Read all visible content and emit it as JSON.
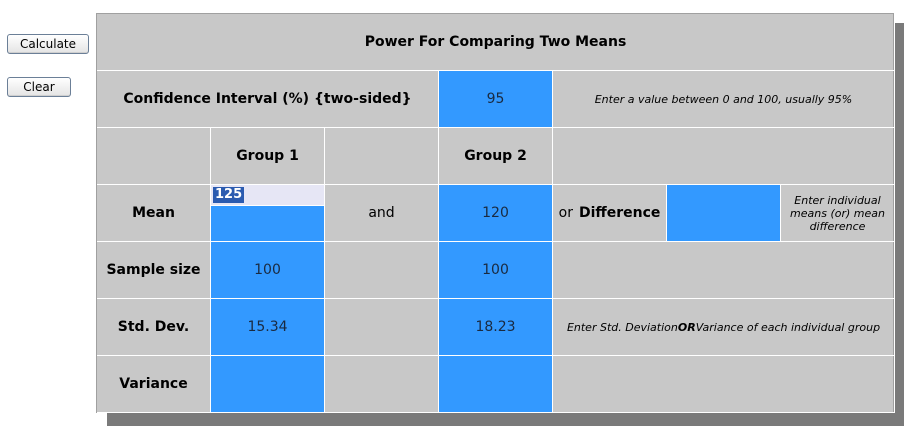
{
  "sidebar": {
    "calculate_label": "Calculate",
    "clear_label": "Clear"
  },
  "form": {
    "title": "Power For Comparing Two Means",
    "confidence": {
      "label": "Confidence Interval (%) {two-sided}",
      "value": "95",
      "hint": "Enter a value between 0 and 100, usually 95%"
    },
    "headers": {
      "group1": "Group 1",
      "group2": "Group 2"
    },
    "mean": {
      "label": "Mean",
      "group1": "125",
      "connector": "and",
      "group2": "120",
      "or_label": "or",
      "difference_label": "Difference",
      "difference_value": "",
      "hint": "Enter individual means (or) mean difference"
    },
    "sample_size": {
      "label": "Sample size",
      "group1": "100",
      "group2": "100"
    },
    "std_dev": {
      "label": "Std. Dev.",
      "group1": "15.34",
      "group2": "18.23",
      "hint_pre": "Enter Std. Deviation ",
      "hint_or": "OR",
      "hint_post": " Variance of each individual group"
    },
    "variance": {
      "label": "Variance",
      "group1": "",
      "group2": ""
    }
  },
  "colors": {
    "panel": "#c8c8c8",
    "input": "#3399ff",
    "shadow": "#7a7a7a",
    "selection": "#2b5bb0"
  }
}
